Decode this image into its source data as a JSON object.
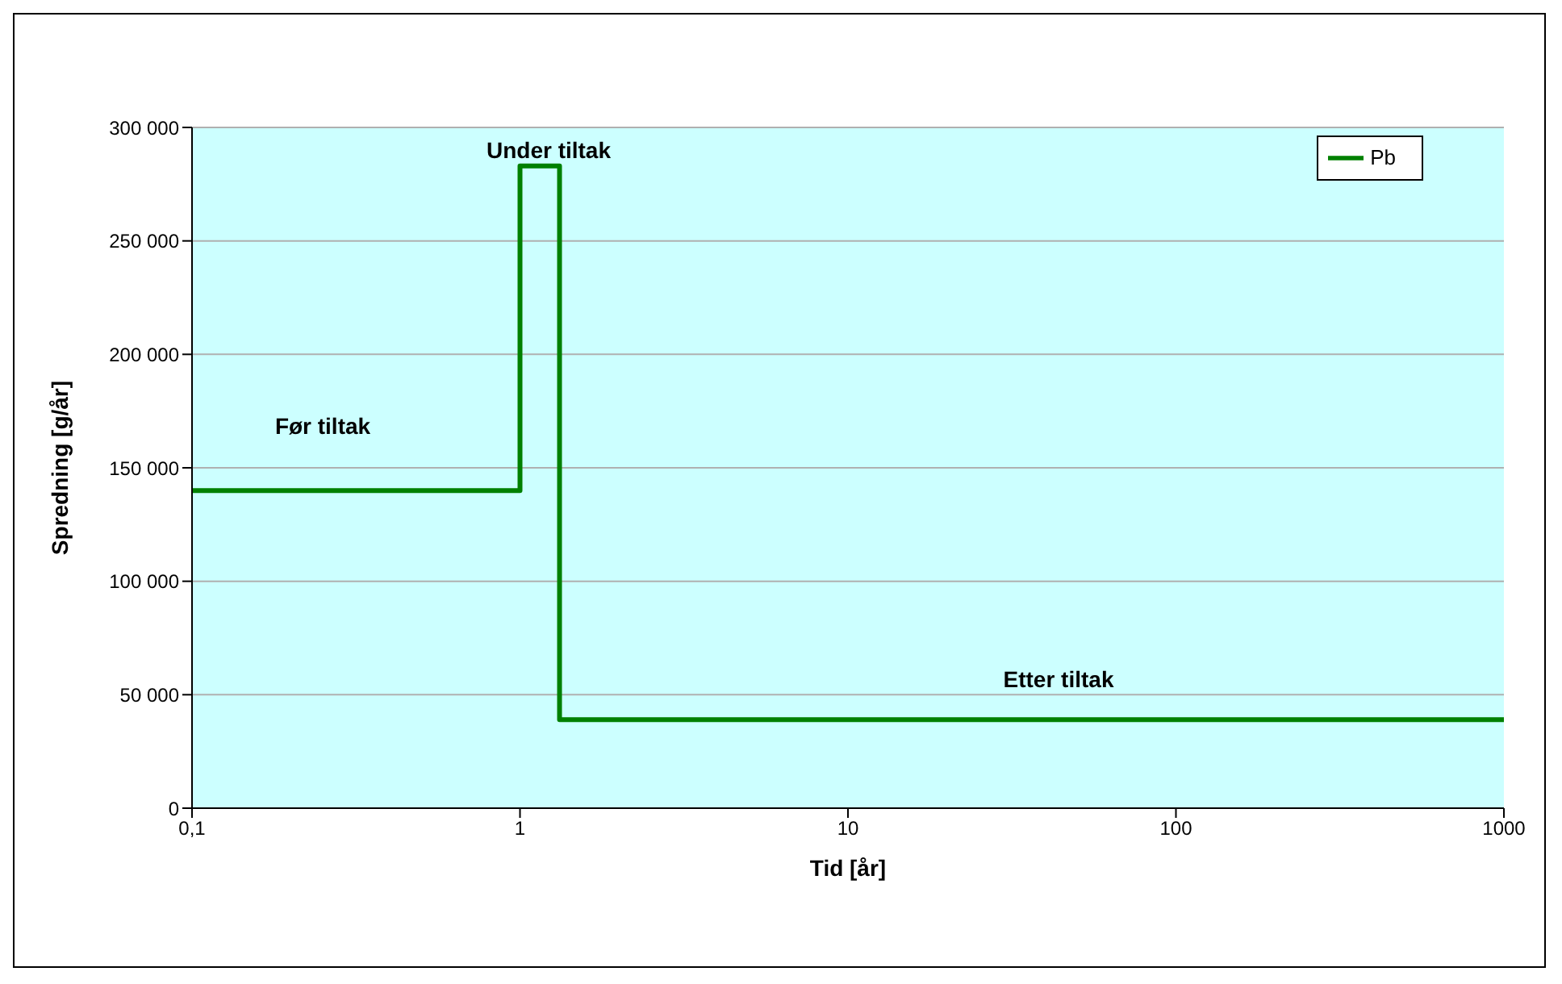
{
  "chart_data": {
    "type": "step",
    "xlabel": "Tid [år]",
    "ylabel": "Spredning [g/år]",
    "x": [
      0.1,
      1,
      1.32,
      1000
    ],
    "series": [
      {
        "name": "Pb",
        "color": "#008000",
        "values": [
          140000,
          283000,
          39000,
          39000
        ]
      }
    ],
    "log": "x",
    "xlim": [
      0.1,
      1000
    ],
    "xticks": [
      {
        "value": 0.1,
        "label": "0,1"
      },
      1,
      10,
      100,
      1000
    ],
    "ylim": [
      0,
      300000
    ],
    "yticks": [
      0,
      {
        "value": 50000,
        "label": "50 000"
      },
      {
        "value": 100000,
        "label": "100 000"
      },
      {
        "value": 150000,
        "label": "150 000"
      },
      {
        "value": 200000,
        "label": "200 000"
      },
      {
        "value": 250000,
        "label": "250 000"
      },
      {
        "value": 300000,
        "label": "300 000"
      }
    ],
    "grid": "y",
    "legend": "top right",
    "line_style": "solid",
    "marker": "none",
    "annotations": [
      "Før tiltak",
      "Under tiltak",
      "Etter tiltak"
    ]
  }
}
